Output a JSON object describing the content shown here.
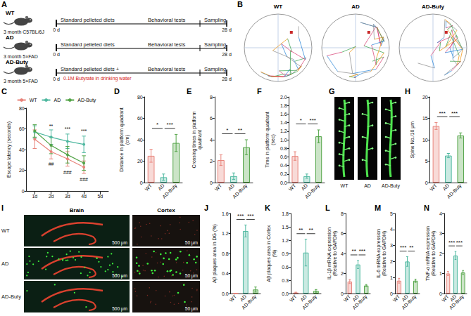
{
  "chart_data": [
    {
      "panel": "C",
      "type": "line",
      "y_label": "Escape latency (seconds)",
      "categories": [
        "1d",
        "2d",
        "3d",
        "4d",
        "5d"
      ],
      "series": [
        {
          "name": "WT",
          "color": "#e8837a",
          "values": [
            50,
            38,
            31,
            23,
            null
          ],
          "errors": [
            9,
            7,
            7,
            6,
            null
          ]
        },
        {
          "name": "AD",
          "color": "#4fb8a0",
          "values": [
            57,
            52,
            48,
            45,
            null
          ],
          "errors": [
            6,
            7,
            7,
            8,
            null
          ]
        },
        {
          "name": "AD-Buty",
          "color": "#52a447",
          "values": [
            58,
            44,
            35,
            27,
            null
          ],
          "errors": [
            6,
            8,
            8,
            7,
            null
          ]
        }
      ],
      "annotations": [
        {
          "x": "2d",
          "y": 63,
          "text": "**"
        },
        {
          "x": "3d",
          "y": 60,
          "text": "***"
        },
        {
          "x": "4d",
          "y": 58,
          "text": "***"
        },
        {
          "x": "2d",
          "y": 26,
          "text": "##"
        },
        {
          "x": "3d",
          "y": 18,
          "text": "###"
        },
        {
          "x": "4d",
          "y": 11,
          "text": "###"
        }
      ],
      "ylim": [
        0,
        80
      ],
      "yticks": [
        0,
        20,
        40,
        60,
        80
      ],
      "grid": false,
      "legend": "top",
      "marker": "circle"
    },
    {
      "panel": "D",
      "type": "bar",
      "y_label": "Distance in platform quadrant (cm)",
      "categories": [
        "WT",
        "AD",
        "AD-Buty"
      ],
      "values": [
        25,
        5,
        37
      ],
      "errors": [
        6,
        3,
        8
      ],
      "colors": [
        "#e8837a",
        "#4fb8a0",
        "#52a447"
      ],
      "ylim": [
        0,
        80
      ],
      "yticks": [
        0,
        20,
        40,
        60,
        80
      ],
      "grid": false,
      "significance": [
        {
          "pair": [
            "WT",
            "AD"
          ],
          "label": "*"
        },
        {
          "pair": [
            "AD",
            "AD-Buty"
          ],
          "label": "***"
        }
      ]
    },
    {
      "panel": "E",
      "type": "bar",
      "y_label": "Crossing times in platform quadrant",
      "categories": [
        "WT",
        "AD",
        "AD-Buty"
      ],
      "values": [
        2.1,
        0.6,
        3.3
      ],
      "errors": [
        0.5,
        0.3,
        0.7
      ],
      "colors": [
        "#e8837a",
        "#4fb8a0",
        "#52a447"
      ],
      "ylim": [
        0,
        8
      ],
      "yticks": [
        0,
        2,
        4,
        6,
        8
      ],
      "grid": false,
      "significance": [
        {
          "pair": [
            "WT",
            "AD"
          ],
          "label": "*"
        },
        {
          "pair": [
            "AD",
            "AD-Buty"
          ],
          "label": "**"
        }
      ]
    },
    {
      "panel": "F",
      "type": "bar",
      "y_label": "Time in platform quadrant (sec)",
      "categories": [
        "WT",
        "AD",
        "AD-Buty"
      ],
      "values": [
        0.62,
        0.15,
        1.08
      ],
      "errors": [
        0.1,
        0.05,
        0.15
      ],
      "colors": [
        "#e8837a",
        "#4fb8a0",
        "#52a447"
      ],
      "ylim": [
        0,
        2
      ],
      "yticks": [
        {
          "value": 0,
          "label": "0.0"
        },
        0.2,
        0.4,
        0.6,
        0.8,
        {
          "value": 1,
          "label": "1.0"
        },
        1.2,
        1.4,
        1.6,
        1.8,
        {
          "value": 2,
          "label": "2.0"
        }
      ],
      "grid": false,
      "significance": [
        {
          "pair": [
            "WT",
            "AD"
          ],
          "label": "*"
        },
        {
          "pair": [
            "AD",
            "AD-Buty"
          ],
          "label": "***"
        }
      ]
    },
    {
      "panel": "H",
      "type": "bar",
      "y_label": "Spine No./10 μm",
      "categories": [
        "WT",
        "AD",
        "AD-Buty"
      ],
      "values": [
        13.2,
        6.3,
        11
      ],
      "errors": [
        0.8,
        0.5,
        0.6
      ],
      "colors": [
        "#e8837a",
        "#4fb8a0",
        "#52a447"
      ],
      "ylim": [
        0,
        20
      ],
      "yticks": [
        0,
        5,
        10,
        15,
        20
      ],
      "grid": false,
      "significance": [
        {
          "pair": [
            "WT",
            "AD"
          ],
          "label": "***"
        },
        {
          "pair": [
            "AD",
            "AD-Buty"
          ],
          "label": "***"
        }
      ]
    },
    {
      "panel": "J",
      "type": "bar",
      "y_label": "Aβ plaques area in DG (%)",
      "categories": [
        "WT",
        "AD",
        "AD-Buty"
      ],
      "values": [
        0,
        1.25,
        0.08
      ],
      "errors": [
        0,
        0.12,
        0.05
      ],
      "colors": [
        "#e8837a",
        "#4fb8a0",
        "#52a447"
      ],
      "ylim": [
        0,
        1.6
      ],
      "yticks": [
        {
          "value": 0,
          "label": "0.0"
        },
        0.4,
        0.8,
        1.2,
        1.6
      ],
      "grid": false,
      "significance": [
        {
          "pair": [
            "WT",
            "AD"
          ],
          "label": "***"
        },
        {
          "pair": [
            "AD",
            "AD-Buty"
          ],
          "label": "***"
        }
      ]
    },
    {
      "panel": "K",
      "type": "bar",
      "y_label": "Aβ plaques area in Cortex (%)",
      "categories": [
        "WT",
        "AD",
        "AD-Buty"
      ],
      "values": [
        0.02,
        0.92,
        0.06
      ],
      "errors": [
        0.01,
        0.3,
        0.03
      ],
      "colors": [
        "#e8837a",
        "#4fb8a0",
        "#52a447"
      ],
      "ylim": [
        0,
        1.8
      ],
      "yticks": [
        {
          "value": 0,
          "label": "0.0"
        },
        0.3,
        0.6,
        0.9,
        1.2,
        1.5,
        1.8
      ],
      "grid": false,
      "significance": [
        {
          "pair": [
            "WT",
            "AD"
          ],
          "label": "**"
        },
        {
          "pair": [
            "AD",
            "AD-Buty"
          ],
          "label": "**"
        }
      ]
    },
    {
      "panel": "L",
      "type": "bar",
      "y_label": "IL-1β mRNA expression (Relative to GAPDH)",
      "categories": [
        "WT",
        "AD",
        "AD-Buty"
      ],
      "values": [
        1.2,
        2.9,
        0.8
      ],
      "errors": [
        0.2,
        0.4,
        0.1
      ],
      "colors": [
        "#e8837a",
        "#4fb8a0",
        "#52a447"
      ],
      "ylim": [
        0,
        8
      ],
      "yticks": [
        0,
        2,
        4,
        6,
        8
      ],
      "grid": false,
      "significance": [
        {
          "pair": [
            "WT",
            "AD"
          ],
          "label": "**"
        },
        {
          "pair": [
            "AD",
            "AD-Buty"
          ],
          "label": "***"
        }
      ]
    },
    {
      "panel": "M",
      "type": "bar",
      "y_label": "IL-6 mRNA expression (Relative to GAPDH)",
      "categories": [
        "WT",
        "AD",
        "AD-Buty"
      ],
      "values": [
        0.8,
        2,
        0.8
      ],
      "errors": [
        0.15,
        0.3,
        0.1
      ],
      "colors": [
        "#e8837a",
        "#4fb8a0",
        "#52a447"
      ],
      "ylim": [
        0,
        5
      ],
      "yticks": [
        0,
        1,
        2,
        3,
        4,
        5
      ],
      "grid": false,
      "significance": [
        {
          "pair": [
            "WT",
            "AD"
          ],
          "label": "***"
        },
        {
          "pair": [
            "AD",
            "AD-Buty"
          ],
          "label": "**"
        }
      ]
    },
    {
      "panel": "N",
      "type": "bar",
      "y_label": "TNF-α mRNA expression (Relative to GAPDH)",
      "categories": [
        "WT",
        "AD",
        "AD-Buty"
      ],
      "values": [
        1,
        1.9,
        1.05
      ],
      "errors": [
        0.1,
        0.2,
        0.1
      ],
      "colors": [
        "#e8837a",
        "#4fb8a0",
        "#52a447"
      ],
      "ylim": [
        0,
        4
      ],
      "yticks": [
        0,
        1,
        2,
        3,
        4
      ],
      "grid": false,
      "significance": [
        {
          "pair": [
            "WT",
            "AD"
          ],
          "label": "***"
        },
        {
          "pair": [
            "AD",
            "AD-Buty"
          ],
          "label": "***"
        }
      ]
    }
  ],
  "figure": {
    "A": {
      "panel": "A",
      "rows": [
        {
          "group": "WT",
          "strain": "3 month C57BL/6J",
          "start": "0 d",
          "diet": "Standard pelleted diets",
          "tests": "Behavioral tests",
          "sampling": "Sampling",
          "end": "28 d"
        },
        {
          "group": "AD",
          "strain": "3 month 5×FAD",
          "start": "0 d",
          "diet": "Standard pelleted diets",
          "tests": "Behavioral tests",
          "sampling": "Sampling",
          "end": "28 d"
        },
        {
          "group": "AD-Buty",
          "strain": "3 month 5×FAD",
          "start": "0 d",
          "diet": "Standard pelleted diets +",
          "treatment": "0.1M Butyrate in drinking water",
          "tests": "Behavioral tests",
          "sampling": "Sampling",
          "end": "28 d"
        }
      ]
    },
    "B": {
      "panel": "B",
      "titles": [
        "WT",
        "AD",
        "AD-Buty"
      ]
    },
    "G": {
      "panel": "G",
      "labels": [
        "WT",
        "AD",
        "AD-Buty"
      ]
    },
    "I": {
      "panel": "I",
      "columns": [
        "Brain",
        "Cortex"
      ],
      "rows": [
        "WT",
        "AD",
        "AD-Buty"
      ],
      "scale_bars": [
        "500 μm",
        "50 μm"
      ]
    }
  }
}
